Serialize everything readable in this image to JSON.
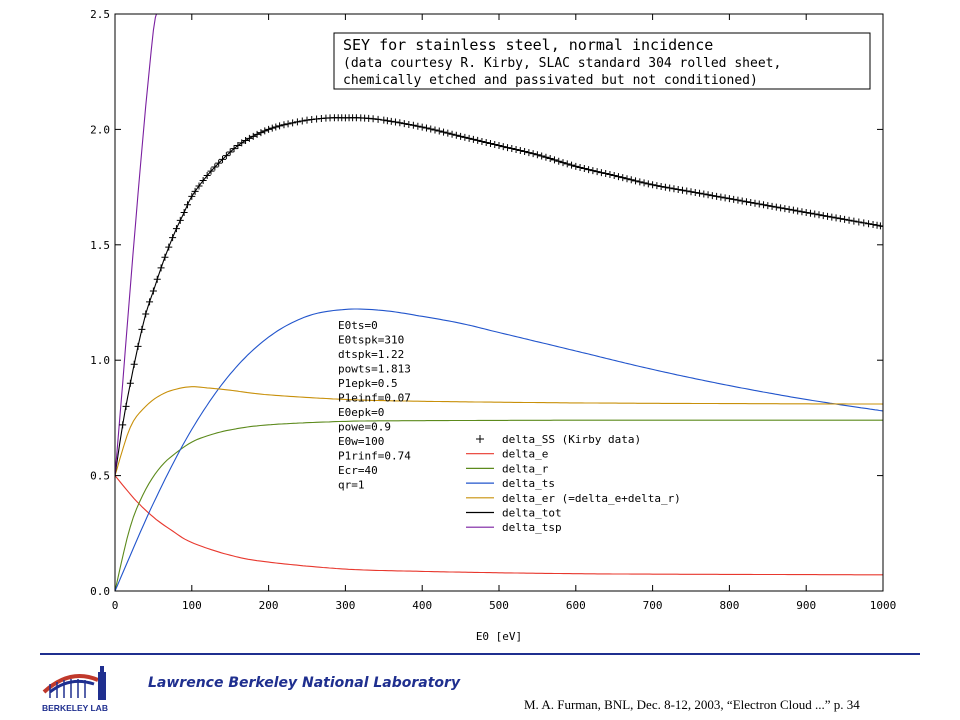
{
  "chart_data": {
    "type": "line",
    "title_lines": [
      "SEY for stainless steel, normal incidence",
      "(data courtesy R. Kirby, SLAC standard 304 rolled sheet,",
      "chemically etched and passivated but not conditioned)"
    ],
    "xlabel": "E0 [eV]",
    "ylabel": "",
    "xlim": [
      0,
      1000
    ],
    "ylim": [
      0,
      2.5
    ],
    "x_ticks": [
      "0",
      "100",
      "200",
      "300",
      "400",
      "500",
      "600",
      "700",
      "800",
      "900",
      "1000"
    ],
    "y_ticks": [
      "0.0",
      "0.5",
      "1.0",
      "1.5",
      "2.0",
      "2.5"
    ],
    "grid": false,
    "legend_position": "center-right",
    "params": [
      "E0ts=0",
      "E0tspk=310",
      "dtspk=1.22",
      "powts=1.813",
      "P1epk=0.5",
      "P1einf=0.07",
      "E0epk=0",
      "powe=0.9",
      "E0w=100",
      "P1rinf=0.74",
      "Ecr=40",
      "qr=1"
    ],
    "series": [
      {
        "name": "delta_SS (Kirby data)",
        "color": "#000000",
        "style": "markers",
        "x": [
          10,
          20,
          30,
          40,
          50,
          60,
          70,
          80,
          90,
          100,
          120,
          140,
          160,
          180,
          200,
          220,
          250,
          280,
          300,
          320,
          350,
          400,
          450,
          500,
          550,
          600,
          650,
          700,
          750,
          800,
          850,
          900,
          950,
          1000
        ],
        "values": [
          0.72,
          0.9,
          1.06,
          1.2,
          1.3,
          1.4,
          1.49,
          1.57,
          1.64,
          1.71,
          1.8,
          1.87,
          1.93,
          1.97,
          2.0,
          2.02,
          2.04,
          2.05,
          2.05,
          2.05,
          2.04,
          2.01,
          1.97,
          1.93,
          1.89,
          1.84,
          1.8,
          1.76,
          1.73,
          1.7,
          1.67,
          1.64,
          1.61,
          1.58
        ]
      },
      {
        "name": "delta_e",
        "color": "#e8382e",
        "style": "line",
        "x": [
          0,
          25,
          50,
          75,
          100,
          150,
          200,
          300,
          400,
          500,
          600,
          700,
          800,
          900,
          1000
        ],
        "values": [
          0.5,
          0.4,
          0.32,
          0.26,
          0.21,
          0.155,
          0.125,
          0.095,
          0.085,
          0.079,
          0.075,
          0.073,
          0.072,
          0.071,
          0.07
        ]
      },
      {
        "name": "delta_r",
        "color": "#5c8a1c",
        "style": "line",
        "x": [
          0,
          20,
          40,
          60,
          80,
          100,
          120,
          150,
          200,
          300,
          400,
          600,
          800,
          1000
        ],
        "values": [
          0.0,
          0.28,
          0.44,
          0.54,
          0.6,
          0.645,
          0.672,
          0.698,
          0.72,
          0.735,
          0.738,
          0.74,
          0.74,
          0.74
        ]
      },
      {
        "name": "delta_ts",
        "color": "#2255cc",
        "style": "line",
        "x": [
          0,
          50,
          100,
          150,
          200,
          250,
          300,
          350,
          400,
          450,
          500,
          600,
          700,
          800,
          900,
          1000
        ],
        "values": [
          0.0,
          0.38,
          0.7,
          0.94,
          1.1,
          1.19,
          1.22,
          1.215,
          1.19,
          1.16,
          1.12,
          1.04,
          0.96,
          0.89,
          0.83,
          0.78
        ]
      },
      {
        "name": "delta_er (=delta_e+delta_r)",
        "color": "#c8900a",
        "style": "line",
        "x": [
          0,
          20,
          40,
          60,
          80,
          100,
          120,
          150,
          200,
          300,
          400,
          600,
          800,
          1000
        ],
        "values": [
          0.5,
          0.71,
          0.8,
          0.85,
          0.875,
          0.885,
          0.88,
          0.87,
          0.85,
          0.83,
          0.822,
          0.815,
          0.812,
          0.81
        ]
      },
      {
        "name": "delta_tot",
        "color": "#000000",
        "style": "line",
        "x": [
          0,
          10,
          20,
          30,
          40,
          50,
          60,
          70,
          80,
          90,
          100,
          120,
          140,
          160,
          180,
          200,
          220,
          250,
          280,
          300,
          320,
          350,
          400,
          450,
          500,
          550,
          600,
          650,
          700,
          750,
          800,
          850,
          900,
          950,
          1000
        ],
        "values": [
          0.5,
          0.72,
          0.9,
          1.06,
          1.2,
          1.3,
          1.4,
          1.49,
          1.57,
          1.64,
          1.71,
          1.8,
          1.87,
          1.93,
          1.97,
          2.0,
          2.02,
          2.04,
          2.05,
          2.05,
          2.05,
          2.04,
          2.01,
          1.97,
          1.93,
          1.89,
          1.84,
          1.8,
          1.76,
          1.73,
          1.7,
          1.67,
          1.64,
          1.61,
          1.58
        ]
      },
      {
        "name": "delta_tsp",
        "color": "#7a1fa0",
        "style": "line",
        "x": [
          0,
          10,
          20,
          30,
          40,
          50,
          54
        ],
        "values": [
          0.5,
          0.9,
          1.32,
          1.72,
          2.1,
          2.43,
          2.5
        ]
      }
    ]
  },
  "footer": {
    "lab_name": "Lawrence Berkeley National Laboratory",
    "logo_text": "BERKELEY LAB",
    "citation": "M. A. Furman, BNL, Dec. 8-12, 2003, “Electron Cloud ...”  p. 34",
    "rule_color": "#1f2f8f"
  }
}
